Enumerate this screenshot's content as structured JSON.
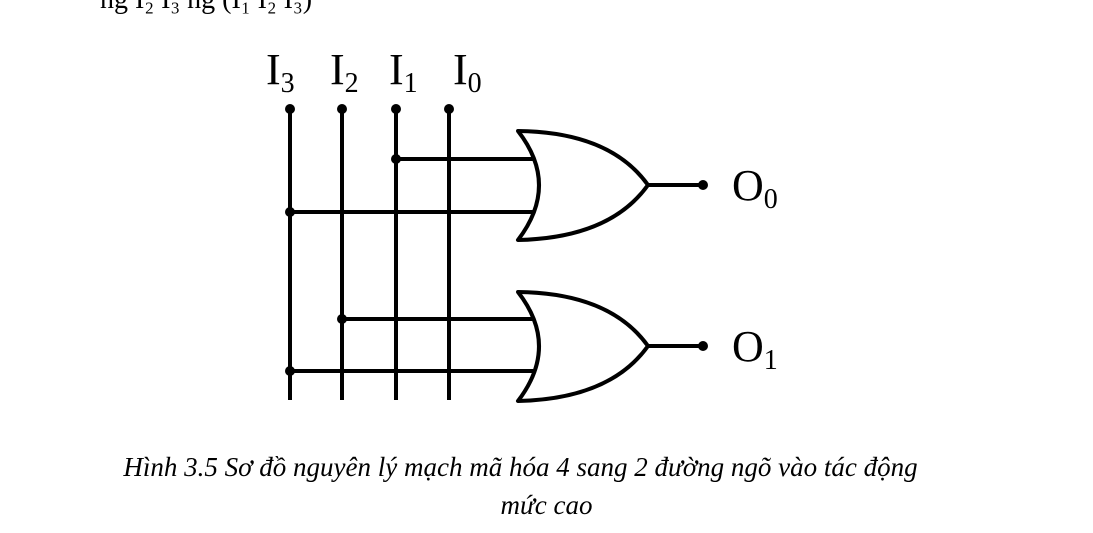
{
  "inputs": [
    {
      "letter": "I",
      "index": "3"
    },
    {
      "letter": "I",
      "index": "2"
    },
    {
      "letter": "I",
      "index": "1"
    },
    {
      "letter": "I",
      "index": "0"
    }
  ],
  "outputs": [
    {
      "letter": "O",
      "index": "0"
    },
    {
      "letter": "O",
      "index": "1"
    }
  ],
  "gates": [
    {
      "type": "OR",
      "inputs": [
        "I1",
        "I3"
      ],
      "output": "O0"
    },
    {
      "type": "OR",
      "inputs": [
        "I2",
        "I3"
      ],
      "output": "O1"
    }
  ],
  "caption": {
    "line1": "Hình 3.5 Sơ đồ nguyên lý mạch mã hóa 4 sang 2 đường ngõ vào tác động",
    "line2": "mức cao"
  }
}
